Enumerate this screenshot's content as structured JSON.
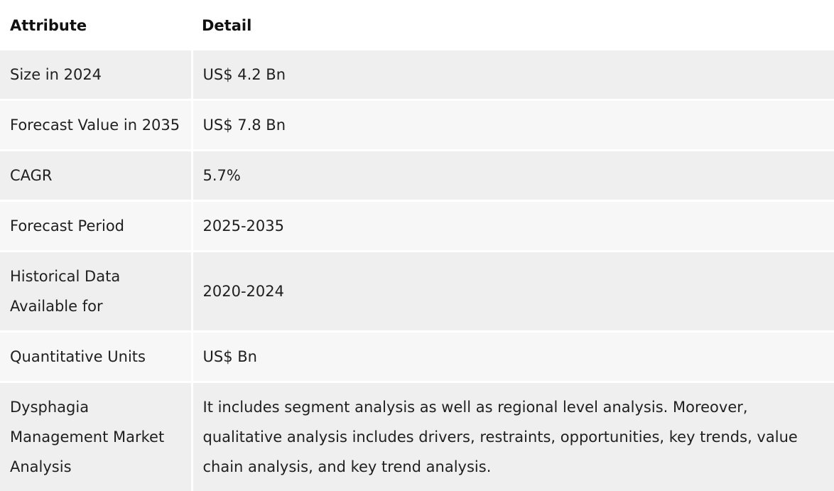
{
  "table": {
    "headers": {
      "attribute": "Attribute",
      "detail": "Detail"
    },
    "rows": [
      {
        "attribute": "Size in 2024",
        "detail": "US$ 4.2 Bn"
      },
      {
        "attribute": "Forecast Value in 2035",
        "detail": "US$ 7.8 Bn"
      },
      {
        "attribute": "CAGR",
        "detail": "5.7%"
      },
      {
        "attribute": "Forecast Period",
        "detail": "2025-2035"
      },
      {
        "attribute": "Historical Data Available for",
        "detail": "2020-2024"
      },
      {
        "attribute": "Quantitative Units",
        "detail": "US$ Bn"
      },
      {
        "attribute": "Dysphagia Management Market Analysis",
        "detail": "It includes segment analysis as well as regional level analysis. Moreover, qualitative analysis includes drivers, restraints, opportunities, key trends, value chain analysis, and key trend analysis."
      }
    ]
  },
  "colors": {
    "row_odd": "#efefef",
    "row_even": "#f7f7f7",
    "text": "#1f1f1f"
  }
}
